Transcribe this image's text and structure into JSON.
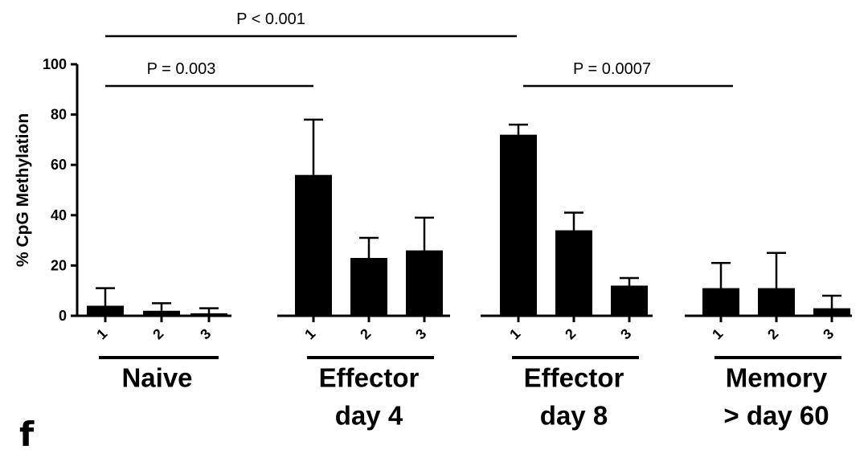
{
  "panel_letter": "f",
  "chart_data": {
    "type": "bar",
    "title": "",
    "xlabel": "",
    "ylabel": "% CpG Methylation",
    "ylim": [
      0,
      100
    ],
    "yticks": [
      0,
      20,
      40,
      60,
      80,
      100
    ],
    "tick_labels": [
      "1",
      "2",
      "3"
    ],
    "grid": false,
    "bar_color": "#000000",
    "groups": [
      {
        "label_lines": [
          "Naive"
        ],
        "values": [
          4,
          2,
          1
        ],
        "errors": [
          7,
          3,
          2
        ]
      },
      {
        "label_lines": [
          "Effector",
          "day 4"
        ],
        "values": [
          56,
          23,
          26
        ],
        "errors": [
          22,
          8,
          13
        ]
      },
      {
        "label_lines": [
          "Effector",
          "day 8"
        ],
        "values": [
          72,
          34,
          12
        ],
        "errors": [
          4,
          7,
          3
        ]
      },
      {
        "label_lines": [
          "Memory",
          "> day 60"
        ],
        "values": [
          11,
          11,
          3
        ],
        "errors": [
          10,
          14,
          5
        ]
      }
    ],
    "annotations": [
      {
        "text": "P < 0.001",
        "from": "Naive",
        "to": "Effector day 8"
      },
      {
        "text": "P = 0.003",
        "from": "Naive",
        "to": "Effector day 4"
      },
      {
        "text": "P = 0.0007",
        "from": "Effector day 8",
        "to": "Memory > day 60"
      }
    ]
  }
}
